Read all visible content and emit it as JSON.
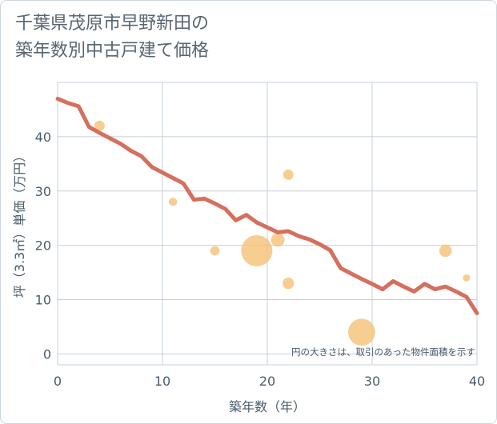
{
  "title_lines": [
    "千葉県茂原市早野新田の",
    "築年数別中古戸建て価格"
  ],
  "chart_data": {
    "type": "scatter",
    "xlabel": "築年数（年）",
    "ylabel": "坪（3.3㎡）単価（万円）",
    "xlim": [
      0,
      40
    ],
    "ylim": [
      -2,
      50
    ],
    "xticks": [
      0,
      10,
      20,
      30,
      40
    ],
    "yticks": [
      0,
      10,
      20,
      30,
      40
    ],
    "grid": true,
    "annotation": "円の大きさは、取引のあった物件面積を示す",
    "colors": {
      "line": "#d4705d",
      "bubble": "#f5c27a"
    },
    "series": [
      {
        "name": "trend",
        "type": "line",
        "x": [
          0,
          1,
          2,
          3,
          4,
          5,
          6,
          7,
          8,
          9,
          10,
          11,
          12,
          13,
          14,
          15,
          16,
          17,
          18,
          19,
          20,
          21,
          22,
          23,
          24,
          25,
          26,
          27,
          28,
          29,
          30,
          31,
          32,
          33,
          34,
          35,
          36,
          37,
          38,
          39,
          40
        ],
        "y": [
          47.0,
          46.2,
          45.6,
          41.8,
          40.7,
          39.7,
          38.7,
          37.4,
          36.4,
          34.4,
          33.4,
          32.4,
          31.4,
          28.4,
          28.6,
          27.7,
          26.7,
          24.6,
          25.6,
          24.2,
          23.3,
          22.4,
          22.6,
          21.7,
          21.1,
          20.2,
          19.1,
          15.8,
          14.8,
          13.8,
          12.9,
          11.9,
          13.4,
          12.4,
          11.5,
          12.9,
          11.9,
          12.4,
          11.5,
          10.5,
          7.5
        ]
      },
      {
        "name": "transactions",
        "type": "bubble",
        "points": [
          {
            "x": 4,
            "y": 42,
            "size": 1.0
          },
          {
            "x": 11,
            "y": 28,
            "size": 0.8
          },
          {
            "x": 15,
            "y": 19,
            "size": 0.9
          },
          {
            "x": 19,
            "y": 19,
            "size": 3.0
          },
          {
            "x": 21,
            "y": 21,
            "size": 1.3
          },
          {
            "x": 22,
            "y": 33,
            "size": 1.0
          },
          {
            "x": 22,
            "y": 13,
            "size": 1.1
          },
          {
            "x": 29,
            "y": 4,
            "size": 2.6
          },
          {
            "x": 37,
            "y": 19,
            "size": 1.2
          },
          {
            "x": 39,
            "y": 14,
            "size": 0.7
          }
        ]
      }
    ]
  }
}
